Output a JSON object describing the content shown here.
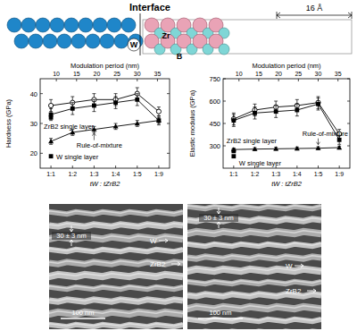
{
  "diagram": {
    "title": "Interface",
    "labels": [
      "W",
      "Zr",
      "B"
    ],
    "dimension": "16 Å"
  },
  "chart_data": [
    {
      "type": "line",
      "ylabel": "Hardness (GPa)",
      "xlabel": "tW : tZrB2",
      "x2label": "Modulation period (nm)",
      "categories": [
        "1:1",
        "1:2",
        "1:3",
        "1:4",
        "1:5",
        "1:9"
      ],
      "x2lim": [
        6,
        38
      ],
      "x2ticks": [
        10,
        15,
        20,
        25,
        30,
        35
      ],
      "ylim": [
        15,
        45
      ],
      "yticks": [
        20,
        30,
        40
      ],
      "grid": false,
      "series": [
        {
          "values": [
            36,
            37,
            38,
            38,
            40,
            34
          ],
          "errors": [
            2,
            2,
            2,
            2,
            2,
            1.5
          ],
          "marker": "open-circle",
          "color": "#000000"
        },
        {
          "values": [
            33,
            35,
            36,
            37,
            38,
            31
          ],
          "errors": [
            2,
            2,
            2,
            2,
            2,
            1.5
          ],
          "marker": "square",
          "color": "#000000"
        },
        {
          "name": "Rule-of-mixture",
          "values": [
            24,
            27,
            28,
            29,
            30,
            31
          ],
          "errors": [
            1,
            1,
            1,
            1,
            1,
            1
          ],
          "marker": "triangle",
          "color": "#000000"
        },
        {
          "name": "ZrB2 single layer",
          "values": [
            32,
            null,
            null,
            null,
            null,
            null
          ],
          "marker": "square",
          "color": "#000000"
        },
        {
          "name": "W single layer",
          "values": [
            19,
            null,
            null,
            null,
            null,
            null
          ],
          "marker": "square",
          "color": "#000000"
        }
      ]
    },
    {
      "type": "line",
      "ylabel": "Elastic modulus (GPa)",
      "xlabel": "tW : tZrB2",
      "x2label": "Modulation period (nm)",
      "categories": [
        "1:1",
        "1:2",
        "1:3",
        "1:4",
        "1:5",
        "1:9"
      ],
      "x2lim": [
        6,
        38
      ],
      "x2ticks": [
        10,
        15,
        20,
        25,
        30,
        35
      ],
      "ylim": [
        150,
        750
      ],
      "yticks": [
        300,
        450,
        600,
        750
      ],
      "grid": false,
      "series": [
        {
          "values": [
            480,
            540,
            560,
            570,
            590,
            380
          ],
          "errors": [
            40,
            40,
            40,
            40,
            40,
            30
          ],
          "marker": "open-circle",
          "color": "#000000"
        },
        {
          "values": [
            470,
            520,
            530,
            540,
            580,
            340
          ],
          "errors": [
            40,
            40,
            40,
            40,
            40,
            30
          ],
          "marker": "square",
          "color": "#000000"
        },
        {
          "name": "Rule-of-mixture",
          "values": [
            275,
            278,
            280,
            282,
            284,
            288
          ],
          "errors": [
            10,
            10,
            10,
            10,
            10,
            10
          ],
          "marker": "triangle",
          "color": "#000000"
        },
        {
          "name": "ZrB2 single layer",
          "values": [
            265,
            null,
            null,
            null,
            null,
            null
          ],
          "marker": "square",
          "color": "#000000"
        },
        {
          "name": "W single layer",
          "values": [
            230,
            null,
            null,
            null,
            null,
            null
          ],
          "marker": "square",
          "color": "#000000"
        }
      ]
    }
  ],
  "micrographs": [
    {
      "period": "30 ± 3 nm",
      "labels": [
        "W",
        "ZrB2"
      ],
      "scale_bar": "100 nm"
    },
    {
      "period": "30 ± 3 nm",
      "labels": [
        "W",
        "ZrB2"
      ],
      "scale_bar": "100 nm"
    }
  ]
}
